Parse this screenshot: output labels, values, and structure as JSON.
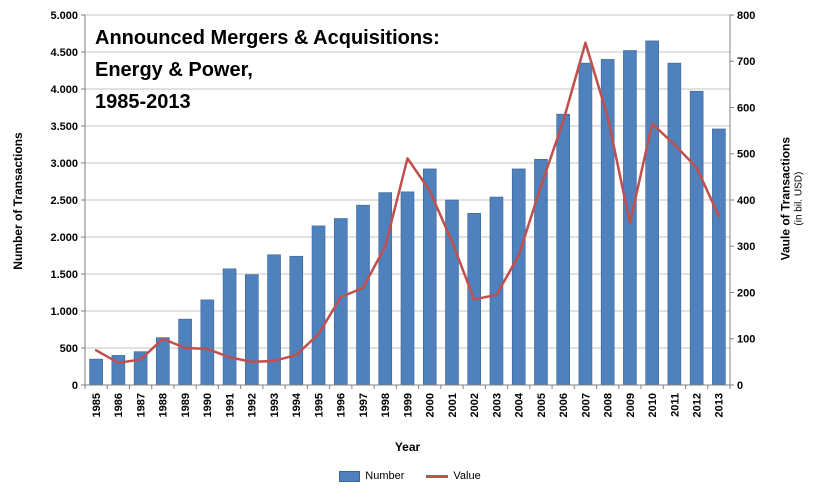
{
  "chart_data": {
    "type": "bar",
    "combo": "bar+line",
    "title_lines": [
      "Announced Mergers & Acquisitions:",
      "Energy & Power,",
      "1985-2013"
    ],
    "categories": [
      "1985",
      "1986",
      "1987",
      "1988",
      "1989",
      "1990",
      "1991",
      "1992",
      "1993",
      "1994",
      "1995",
      "1996",
      "1997",
      "1998",
      "1999",
      "2000",
      "2001",
      "2002",
      "2003",
      "2004",
      "2005",
      "2006",
      "2007",
      "2008",
      "2009",
      "2010",
      "2011",
      "2012",
      "2013"
    ],
    "series": [
      {
        "name": "Number",
        "type": "bar",
        "axis": "left",
        "color": "#4f81bd",
        "border": "#3c6494",
        "values": [
          350,
          400,
          450,
          640,
          890,
          1150,
          1570,
          1490,
          1760,
          1740,
          2150,
          2250,
          2430,
          2600,
          2610,
          2920,
          2500,
          2320,
          2540,
          2920,
          3050,
          3660,
          4350,
          4400,
          4520,
          4650,
          4350,
          3970,
          3460
        ]
      },
      {
        "name": "Value",
        "type": "line",
        "axis": "right",
        "color": "#c0504d",
        "values": [
          75,
          48,
          55,
          100,
          80,
          78,
          60,
          50,
          52,
          65,
          110,
          190,
          210,
          300,
          490,
          420,
          310,
          185,
          195,
          280,
          430,
          570,
          740,
          580,
          350,
          565,
          520,
          470,
          365
        ]
      }
    ],
    "left_axis": {
      "title": "Number of Transactions",
      "min": 0,
      "max": 5000,
      "step": 500,
      "tick_labels": [
        "0",
        "500",
        "1.000",
        "1.500",
        "2.000",
        "2.500",
        "3.000",
        "3.500",
        "4.000",
        "4.500",
        "5.000"
      ]
    },
    "right_axis": {
      "title": "Vaule of Transactions",
      "subtitle": "(in bil. USD)",
      "min": 0,
      "max": 800,
      "step": 100,
      "tick_labels": [
        "0",
        "100",
        "200",
        "300",
        "400",
        "500",
        "600",
        "700",
        "800"
      ]
    },
    "x_axis": {
      "title": "Year"
    },
    "legend": [
      {
        "label": "Number",
        "swatch": "bar",
        "color": "#4f81bd"
      },
      {
        "label": "Value",
        "swatch": "line",
        "color": "#c0504d"
      }
    ],
    "grid": true,
    "legend_position": "bottom",
    "colors": {
      "gridline": "#c6c6c6",
      "axis": "#808080",
      "text": "#000000",
      "background": "#ffffff"
    }
  }
}
